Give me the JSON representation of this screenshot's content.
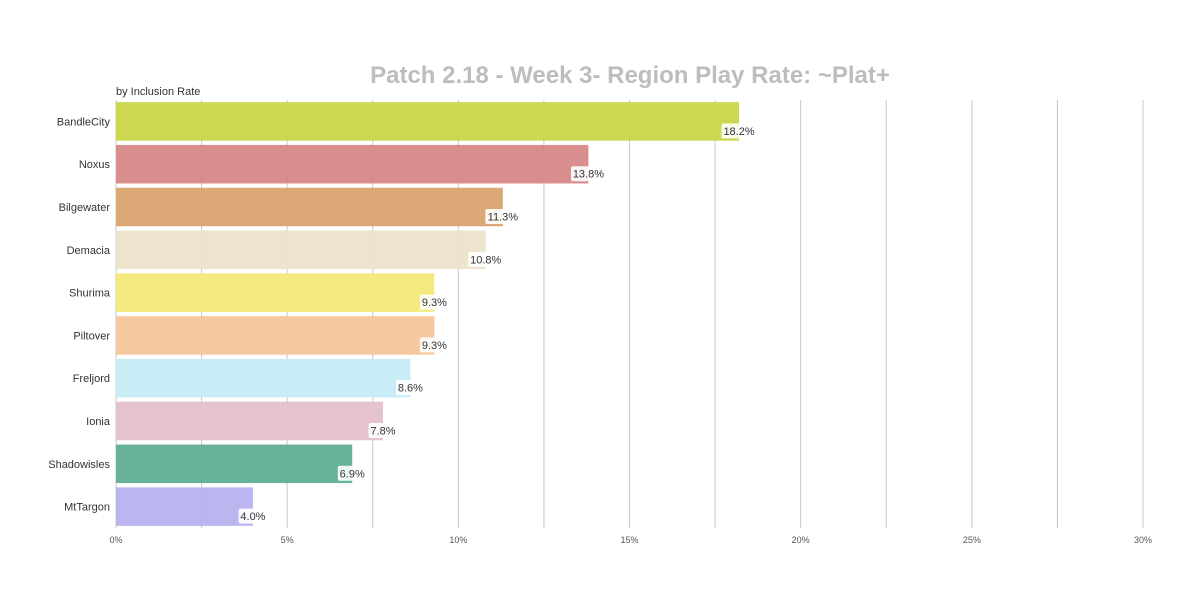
{
  "chart_data": {
    "type": "bar",
    "orientation": "horizontal",
    "title": "Patch 2.18 - Week 3- Region Play Rate: ~Plat+",
    "subtitle": "by Inclusion Rate",
    "categories": [
      "BandleCity",
      "Noxus",
      "Bilgewater",
      "Demacia",
      "Shurima",
      "Piltover",
      "Freljord",
      "Ionia",
      "Shadowisles",
      "MtTargon"
    ],
    "values": [
      18.2,
      13.8,
      11.3,
      10.8,
      9.3,
      9.3,
      8.6,
      7.8,
      6.9,
      4.0
    ],
    "data_labels": [
      "18.2%",
      "13.8%",
      "11.3%",
      "10.8%",
      "9.3%",
      "9.3%",
      "8.6%",
      "7.8%",
      "6.9%",
      "4.0%"
    ],
    "colors": [
      "#c8d647",
      "#d68887",
      "#d9a36e",
      "#ebe3c9",
      "#f3e978",
      "#f5c59a",
      "#c6ecf6",
      "#e4bfcc",
      "#5fae94",
      "#b7b1ef"
    ],
    "x_ticks": [
      "0%",
      "5%",
      "10%",
      "15%",
      "20%",
      "25%",
      "30%"
    ],
    "xlim": [
      0,
      30
    ],
    "grid": true,
    "legend": "none"
  }
}
